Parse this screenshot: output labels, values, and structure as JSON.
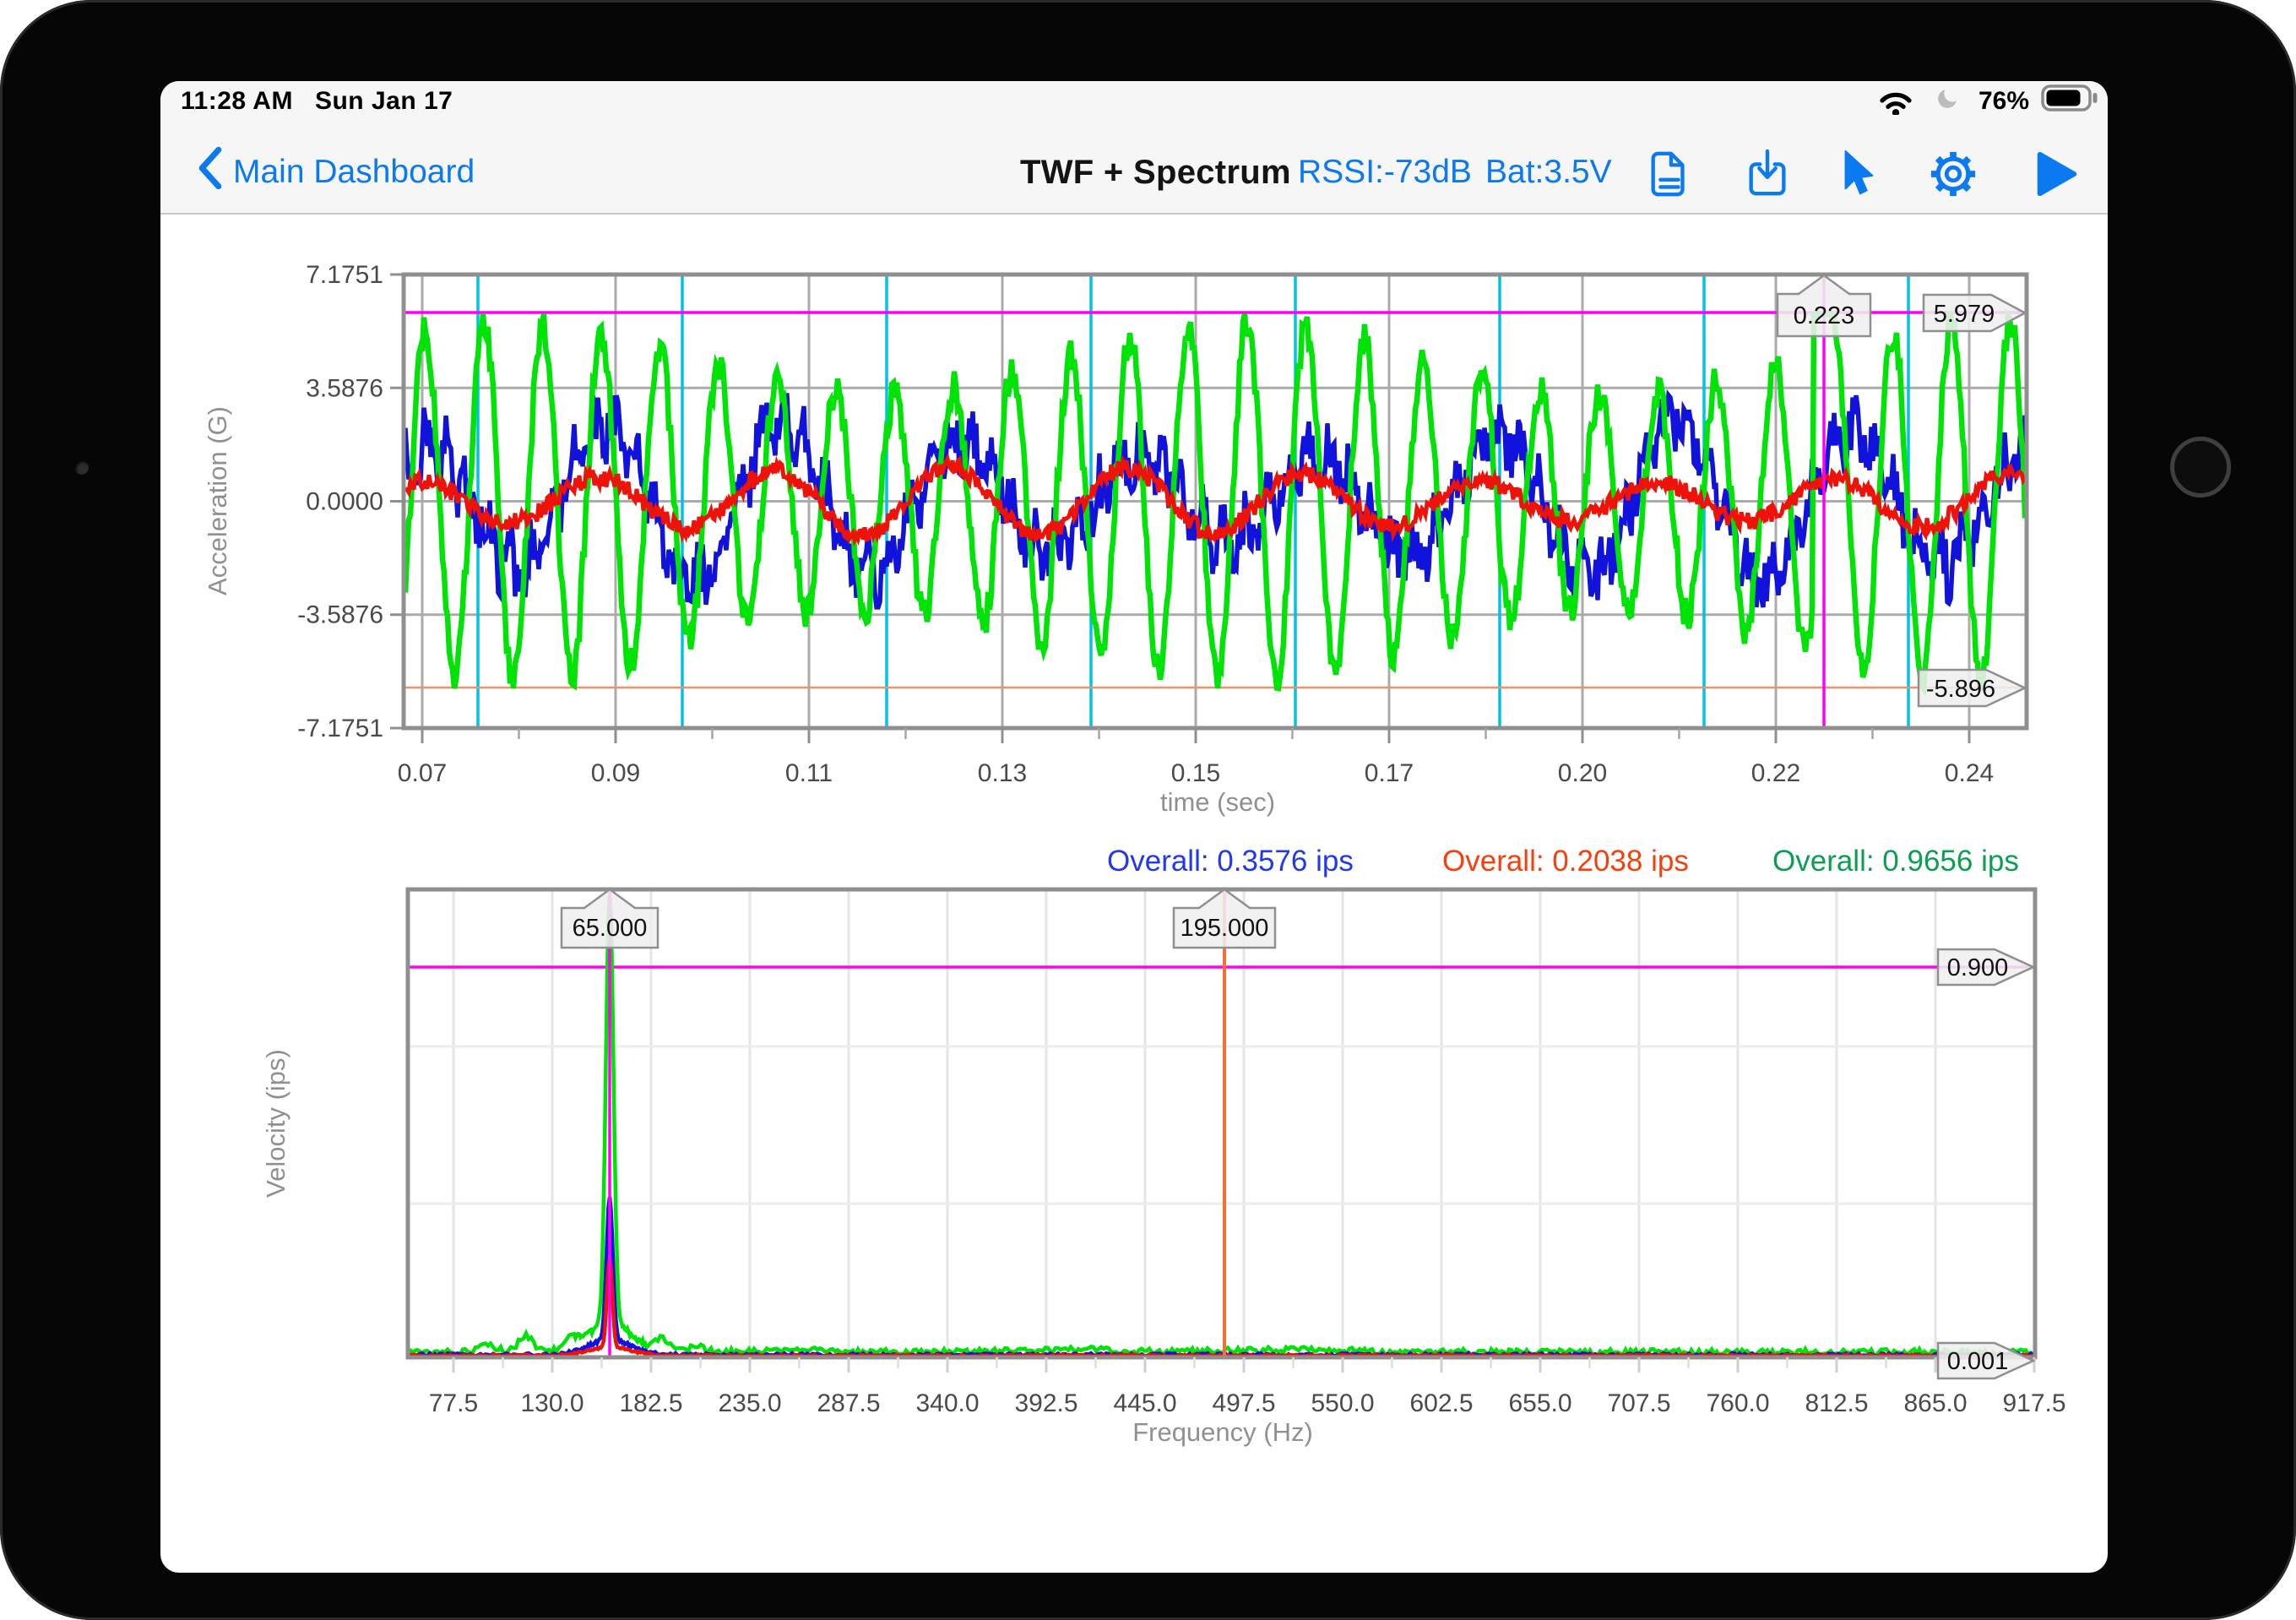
{
  "status_bar": {
    "time": "11:28 AM",
    "date": "Sun Jan 17",
    "battery_percent": "76%",
    "icons": [
      "wifi-icon",
      "moon-icon",
      "battery-icon"
    ]
  },
  "nav_bar": {
    "back_label": "Main Dashboard",
    "title": "TWF + Spectrum",
    "rssi": "RSSI:-73dB",
    "battery_voltage": "Bat:3.5V",
    "action_icons": [
      "document-icon",
      "download-icon",
      "pointer-icon",
      "settings-icon",
      "play-icon"
    ]
  },
  "colors": {
    "accent_blue": "#0b79f0",
    "trace_green": "#00e306",
    "trace_blue": "#1212dd",
    "trace_red": "#ee1208",
    "magenta": "#ff00f2",
    "cyan": "#00c2e2",
    "orange_threshold": "#f0916a",
    "orange_cursor": "#f46f35",
    "grid_major": "#ababab",
    "grid_light": "#e5e5e5",
    "frame_gray": "#8f8f8f",
    "tick_text": "#4a4a4a",
    "axis_title_text": "#909090",
    "overall_blue": "#2138ef",
    "overall_red": "#f5400c",
    "overall_green": "#0c9f52",
    "callout_fill": "#efefef",
    "callout_stroke": "#8f8f8f"
  },
  "overall_row": [
    {
      "label": "Overall: 0.3576 ips",
      "series": "blue"
    },
    {
      "label": "Overall: 0.2038 ips",
      "series": "red"
    },
    {
      "label": "Overall: 0.9656 ips",
      "series": "green"
    }
  ],
  "chart_data": [
    {
      "type": "line",
      "id": "twf",
      "title": "Time waveform",
      "xlabel": "time (sec)",
      "ylabel": "Acceleration (G)",
      "x_tick_labels": [
        "0.07",
        "0.09",
        "0.11",
        "0.13",
        "0.15",
        "0.17",
        "0.20",
        "0.22",
        "0.24"
      ],
      "y_tick_labels": [
        "7.1751",
        "3.5876",
        "0.0000",
        "-3.5876",
        "-7.1751"
      ],
      "ylim": [
        -7.1751,
        7.1751
      ],
      "xlim_sec": [
        0.065,
        0.245
      ],
      "markers": {
        "time_cursor_label": "0.223",
        "max_line_label": "5.979",
        "max_line_value": 5.979,
        "min_line_label": "-5.896",
        "min_line_value": -5.896
      },
      "rev_marker_count": 8,
      "series": [
        {
          "name": "blue",
          "freq_hz": 51,
          "amp_g": 1.9,
          "am_freq_hz": 9.3,
          "am_depth_g": 0.75,
          "noise_g": 0.85,
          "clamp_g": 3.35
        },
        {
          "name": "green",
          "freq_hz": 155,
          "amp_g": 4.55,
          "am_freq_hz": 12.3,
          "am_depth_g": 1.15,
          "noise_g": 0.55,
          "clamp_g": 5.92,
          "peak_time_s": 0.2211
        },
        {
          "name": "red",
          "freq_hz": 51.5,
          "amp_g": 0.85,
          "am_freq_hz": 7.1,
          "am_depth_g": 0.25,
          "noise_g": 0.28,
          "clamp_g": 1.4
        }
      ]
    },
    {
      "type": "line",
      "id": "spectrum",
      "title": "Velocity spectrum",
      "xlabel": "Frequency (Hz)",
      "ylabel": "Velocity (ips)",
      "x_tick_labels": [
        "77.5",
        "130.0",
        "182.5",
        "235.0",
        "287.5",
        "340.0",
        "392.5",
        "445.0",
        "497.5",
        "550.0",
        "602.5",
        "655.0",
        "707.5",
        "760.0",
        "812.5",
        "865.0",
        "917.5"
      ],
      "ylim_ips": [
        0,
        1.078
      ],
      "peak_freq_hz": 160.5,
      "markers": {
        "peak_cursor_label": "65.000",
        "second_cursor_label": "195.000",
        "second_cursor_freq_hz": 487,
        "upper_threshold_label": "0.900",
        "upper_threshold_value": 0.9,
        "lower_threshold_label": "0.001",
        "lower_threshold_value": 0.001
      },
      "series": [
        {
          "name": "green",
          "peak_ips": 1.0,
          "overall_ips": "0.9656",
          "floor_ips": 0.012,
          "skirt_ips": 0.07,
          "sigma_hz": 2.0
        },
        {
          "name": "blue",
          "peak_ips": 0.325,
          "overall_ips": "0.3576",
          "floor_ips": 0.006,
          "skirt_ips": 0.035,
          "sigma_hz": 1.7
        },
        {
          "name": "red",
          "peak_ips": 0.205,
          "overall_ips": "0.2038",
          "floor_ips": 0.004,
          "skirt_ips": 0.02,
          "sigma_hz": 1.4
        }
      ]
    }
  ]
}
